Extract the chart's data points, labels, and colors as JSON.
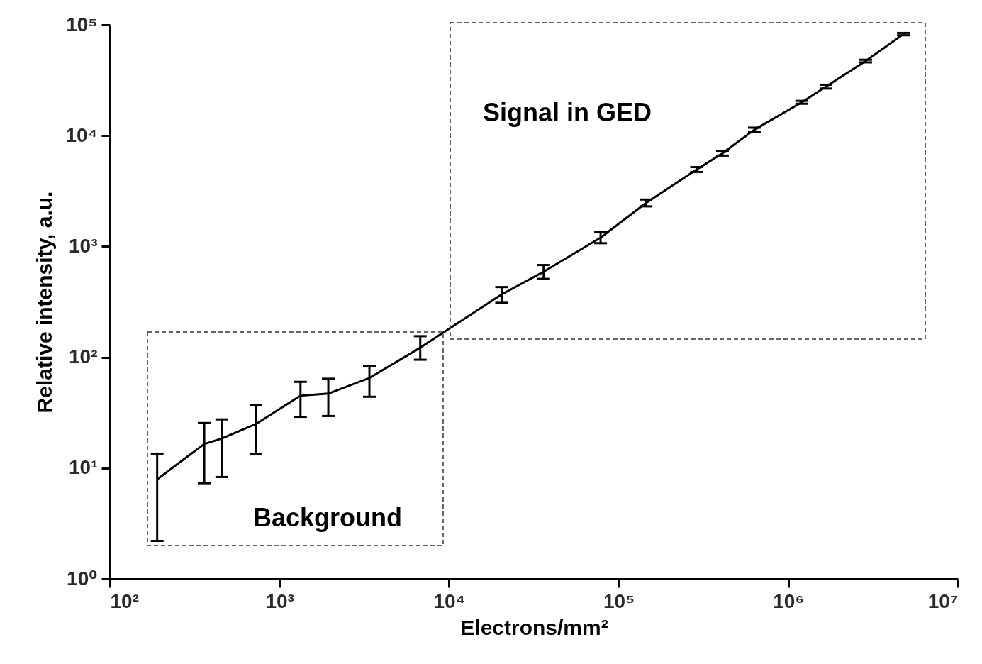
{
  "chart_data": {
    "type": "line",
    "xlabel": "Electrons/mm²",
    "ylabel": "Relative intensity, a.u.",
    "log": "xy",
    "grid": false,
    "marker": "none",
    "line_style": "solid",
    "x": [
      190,
      360,
      457,
      726,
      1330,
      1940,
      3390,
      6760,
      20400,
      36100,
      78200,
      145000,
      288000,
      409000,
      631000,
      1200000,
      1670000,
      2860000,
      4770000
    ],
    "series": [
      {
        "color": "#000000",
        "values": [
          7.9,
          16.5,
          18.5,
          25,
          45,
          47,
          65,
          122,
          369,
          591,
          1200,
          2470,
          4940,
          6930,
          11300,
          20000,
          27700,
          47100,
          82500
        ],
        "errors": [
          [
            2.2,
            13.5
          ],
          [
            7.3,
            25.5
          ],
          [
            8.3,
            27.5
          ],
          [
            13.3,
            37
          ],
          [
            29,
            60
          ],
          [
            29.5,
            64
          ],
          [
            44,
            83
          ],
          [
            95,
            155
          ],
          [
            310,
            430
          ],
          [
            510,
            680
          ],
          [
            1070,
            1350
          ],
          [
            2300,
            2650
          ],
          [
            4700,
            5200
          ],
          [
            6600,
            7300
          ],
          [
            10800,
            11800
          ],
          [
            19400,
            20600
          ],
          [
            26600,
            28800
          ],
          [
            45800,
            48400
          ],
          [
            80500,
            84500
          ]
        ]
      }
    ],
    "xlim": [
      100,
      10000000
    ],
    "ylim": [
      1,
      100000
    ],
    "xticks": [
      {
        "value": 100,
        "label": "10²"
      },
      {
        "value": 1000,
        "label": "10³"
      },
      {
        "value": 10000,
        "label": "10⁴"
      },
      {
        "value": 100000,
        "label": "10⁵"
      },
      {
        "value": 1000000,
        "label": "10⁶"
      },
      {
        "value": 10000000,
        "label": "10⁷"
      }
    ],
    "yticks": [
      {
        "value": 1,
        "label": "10⁰"
      },
      {
        "value": 10,
        "label": "10¹"
      },
      {
        "value": 100,
        "label": "10²"
      },
      {
        "value": 1000,
        "label": "10³"
      },
      {
        "value": 10000,
        "label": "10⁴"
      },
      {
        "value": 100000,
        "label": "10⁵"
      }
    ],
    "annotations": [
      "Signal in GED",
      "Background"
    ]
  }
}
